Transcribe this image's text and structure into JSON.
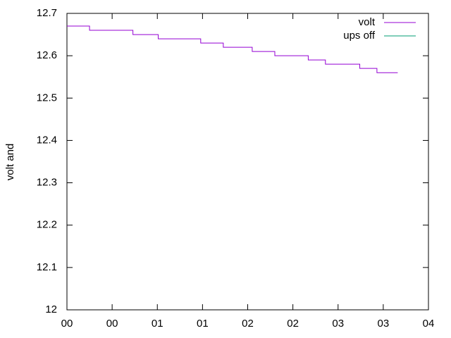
{
  "chart_data": {
    "type": "line",
    "step": true,
    "ylabel": "volt and",
    "x": [
      0,
      0.25,
      0.73,
      1.01,
      1.48,
      1.73,
      2.05,
      2.3,
      2.67,
      2.86,
      3.24,
      3.43,
      3.66
    ],
    "series": [
      {
        "name": "volt",
        "color": "#9400d3",
        "values": [
          12.67,
          12.66,
          12.65,
          12.64,
          12.63,
          12.62,
          12.61,
          12.6,
          12.59,
          12.58,
          12.57,
          12.56,
          12.56
        ]
      },
      {
        "name": "ups off",
        "color": "#009e73",
        "values": [
          null,
          null,
          null,
          null,
          null,
          null,
          null,
          null,
          null,
          null,
          null,
          null,
          null
        ]
      }
    ],
    "xlim": [
      0,
      4
    ],
    "xticks": [
      {
        "value": 0,
        "label": "00"
      },
      {
        "value": 0.5,
        "label": "00"
      },
      {
        "value": 1,
        "label": "01"
      },
      {
        "value": 1.5,
        "label": "01"
      },
      {
        "value": 2,
        "label": "02"
      },
      {
        "value": 2.5,
        "label": "02"
      },
      {
        "value": 3,
        "label": "03"
      },
      {
        "value": 3.5,
        "label": "03"
      },
      {
        "value": 4,
        "label": "04"
      }
    ],
    "ylim": [
      12,
      12.7
    ],
    "yticks": [
      12,
      12.1,
      12.2,
      12.3,
      12.4,
      12.5,
      12.6,
      12.7
    ],
    "legend": "top-right",
    "grid": false
  }
}
